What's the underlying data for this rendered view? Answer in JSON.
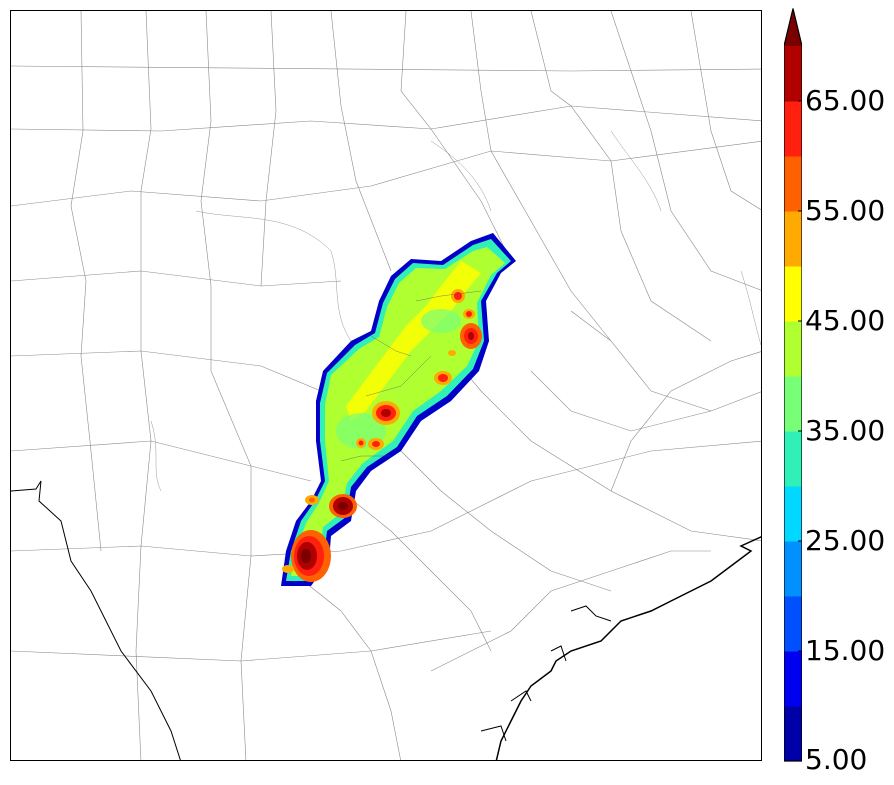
{
  "colorbar": {
    "labels": [
      "5.00",
      "15.00",
      "25.00",
      "35.00",
      "45.00",
      "55.00",
      "65.00"
    ],
    "colors": [
      "#0000a8",
      "#0000f0",
      "#0050ff",
      "#0090ff",
      "#00d8ff",
      "#30f0b8",
      "#78ff78",
      "#b0ff30",
      "#ffff00",
      "#ffaa00",
      "#ff6000",
      "#ff2010",
      "#b00000",
      "#7a0000"
    ]
  },
  "chart_data": {
    "type": "heatmap",
    "colorbar_range": [
      5,
      70
    ],
    "colorbar_interval": 5,
    "colorbar_extend": "max"
  }
}
